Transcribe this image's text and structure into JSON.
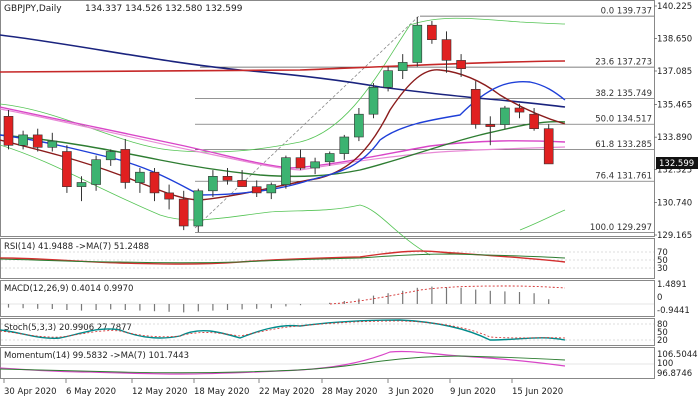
{
  "header": {
    "symbol": "GBPJPY,Daily",
    "ohlc": "134.337 134.526 132.580 132.599"
  },
  "current_price": "132.599",
  "price_axis": {
    "ticks": [
      "140.225",
      "138.650",
      "137.085",
      "135.465",
      "133.890",
      "132.325",
      "130.740",
      "129.165"
    ]
  },
  "fib_levels": [
    {
      "label": "0.0 139.737",
      "value": 139.737
    },
    {
      "label": "23.6 137.273",
      "value": 137.273
    },
    {
      "label": "38.2 135.749",
      "value": 135.749
    },
    {
      "label": "50.0 134.517",
      "value": 134.517
    },
    {
      "label": "61.8 133.285",
      "value": 133.285
    },
    {
      "label": "76.4 131.761",
      "value": 131.761
    },
    {
      "label": "100.0 129.297",
      "value": 129.297
    }
  ],
  "panels": {
    "rsi": {
      "label": "RSI(14) 41.9488 ->MA(7) 51.2488",
      "ticks": [
        "70",
        "50",
        "30"
      ]
    },
    "macd": {
      "label": "MACD(12,26,9) 0.4014 0.9970",
      "ticks": [
        "1.4891",
        "0",
        "-0.9441"
      ]
    },
    "stoch": {
      "label": "Stoch(5,3,3) 20.9906 27.7877",
      "ticks": [
        "80",
        "50",
        "20"
      ]
    },
    "momentum": {
      "label": "Momentum(14) 99.5832 ->MA(7) 101.7443",
      "ticks": [
        "106.5044",
        "100",
        "96.8746"
      ]
    }
  },
  "date_axis": [
    "30 Apr 2020",
    "6 May 2020",
    "12 May 2020",
    "18 May 2020",
    "22 May 2020",
    "28 May 2020",
    "3 Jun 2020",
    "9 Jun 2020",
    "15 Jun 2020"
  ],
  "colors": {
    "up": "#3cb371",
    "down": "#e02020",
    "ma_blue": "#1a237e",
    "ma_red": "#c62828",
    "ma_magenta": "#d946c8",
    "ma_green": "#2e7d32",
    "bollinger": "#55c455"
  },
  "chart_data": {
    "type": "candlestick",
    "dates": [
      "2020-04-28",
      "2020-04-29",
      "2020-04-30",
      "2020-05-01",
      "2020-05-04",
      "2020-05-05",
      "2020-05-06",
      "2020-05-07",
      "2020-05-08",
      "2020-05-11",
      "2020-05-12",
      "2020-05-13",
      "2020-05-14",
      "2020-05-15",
      "2020-05-18",
      "2020-05-19",
      "2020-05-20",
      "2020-05-21",
      "2020-05-22",
      "2020-05-25",
      "2020-05-26",
      "2020-05-27",
      "2020-05-28",
      "2020-05-29",
      "2020-06-01",
      "2020-06-02",
      "2020-06-03",
      "2020-06-04",
      "2020-06-05",
      "2020-06-08",
      "2020-06-09",
      "2020-06-10",
      "2020-06-11",
      "2020-06-12",
      "2020-06-15",
      "2020-06-16",
      "2020-06-17",
      "2020-06-18"
    ],
    "ohlc": [
      [
        134.9,
        135.2,
        133.3,
        133.5
      ],
      [
        133.5,
        134.2,
        133.3,
        134.0
      ],
      [
        134.0,
        134.3,
        133.2,
        133.4
      ],
      [
        133.4,
        134.1,
        133.2,
        133.7
      ],
      [
        133.2,
        133.5,
        131.2,
        131.5
      ],
      [
        131.5,
        132.0,
        130.8,
        131.7
      ],
      [
        131.6,
        133.0,
        131.3,
        132.8
      ],
      [
        132.8,
        133.3,
        132.5,
        133.2
      ],
      [
        133.3,
        133.8,
        131.4,
        131.7
      ],
      [
        131.7,
        132.4,
        131.2,
        132.2
      ],
      [
        132.2,
        132.4,
        130.8,
        131.2
      ],
      [
        131.2,
        131.6,
        130.4,
        130.9
      ],
      [
        130.9,
        131.3,
        129.4,
        129.6
      ],
      [
        129.6,
        131.4,
        129.3,
        131.3
      ],
      [
        131.3,
        132.3,
        131.0,
        132.0
      ],
      [
        132.0,
        132.4,
        131.6,
        131.8
      ],
      [
        131.8,
        132.3,
        131.5,
        131.5
      ],
      [
        131.5,
        131.8,
        131.0,
        131.2
      ],
      [
        131.2,
        131.7,
        130.9,
        131.6
      ],
      [
        131.6,
        133.0,
        131.4,
        132.9
      ],
      [
        132.9,
        133.3,
        132.3,
        132.4
      ],
      [
        132.4,
        132.9,
        132.1,
        132.7
      ],
      [
        132.7,
        133.2,
        132.5,
        133.1
      ],
      [
        133.1,
        134.0,
        132.8,
        133.9
      ],
      [
        133.9,
        135.3,
        133.7,
        135.0
      ],
      [
        135.0,
        136.5,
        134.8,
        136.3
      ],
      [
        136.3,
        137.3,
        136.1,
        137.1
      ],
      [
        137.1,
        137.9,
        136.7,
        137.5
      ],
      [
        137.5,
        139.7,
        137.3,
        139.3
      ],
      [
        139.3,
        139.5,
        138.4,
        138.6
      ],
      [
        138.6,
        139.0,
        137.0,
        137.6
      ],
      [
        137.6,
        137.9,
        136.8,
        137.2
      ],
      [
        136.2,
        136.6,
        134.3,
        134.5
      ],
      [
        134.5,
        134.9,
        133.5,
        134.4
      ],
      [
        134.5,
        135.4,
        134.3,
        135.3
      ],
      [
        135.3,
        135.5,
        134.8,
        135.1
      ],
      [
        135.0,
        135.3,
        134.2,
        134.3
      ],
      [
        134.3,
        134.5,
        132.6,
        132.6
      ]
    ]
  }
}
